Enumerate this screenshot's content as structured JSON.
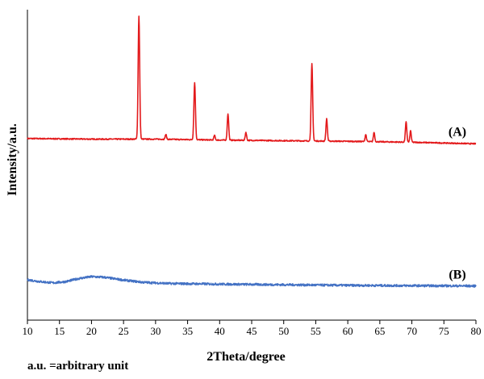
{
  "chart_data": {
    "type": "line",
    "xlabel": "2Theta/degree",
    "ylabel": "Intensity/a.u.",
    "xlim": [
      10,
      80
    ],
    "xticks": [
      10,
      15,
      20,
      25,
      30,
      35,
      40,
      45,
      50,
      55,
      60,
      65,
      70,
      75,
      80
    ],
    "ylim": [
      0,
      100
    ],
    "yticks_shown": false,
    "grid": false,
    "legend": "inline labels at right end of each trace",
    "footnote": "a.u. =arbitrary unit",
    "series": [
      {
        "name": "(A)",
        "color": "#e31a1c",
        "baseline": {
          "x": [
            10,
            20,
            30,
            40,
            50,
            60,
            70,
            80
          ],
          "y": [
            58.5,
            58.3,
            58.3,
            58.0,
            57.8,
            57.6,
            57.3,
            56.8
          ]
        },
        "peaks": [
          {
            "x": 27.4,
            "y": 98.0,
            "w": 0.17
          },
          {
            "x": 31.6,
            "y": 59.8,
            "w": 0.15
          },
          {
            "x": 36.1,
            "y": 76.5,
            "w": 0.17
          },
          {
            "x": 39.2,
            "y": 59.5,
            "w": 0.15
          },
          {
            "x": 41.3,
            "y": 66.5,
            "w": 0.16
          },
          {
            "x": 44.1,
            "y": 60.5,
            "w": 0.15
          },
          {
            "x": 54.4,
            "y": 82.5,
            "w": 0.17
          },
          {
            "x": 56.7,
            "y": 64.8,
            "w": 0.16
          },
          {
            "x": 62.8,
            "y": 59.8,
            "w": 0.15
          },
          {
            "x": 64.1,
            "y": 60.5,
            "w": 0.15
          },
          {
            "x": 69.1,
            "y": 63.8,
            "w": 0.16
          },
          {
            "x": 69.8,
            "y": 61.0,
            "w": 0.15
          }
        ]
      },
      {
        "name": "(B)",
        "color": "#4472c4",
        "baseline": {
          "x": [
            10,
            12,
            14,
            16,
            18,
            20,
            22,
            25,
            28,
            32,
            40,
            50,
            60,
            70,
            80
          ],
          "y": [
            13.0,
            12.4,
            12.0,
            12.4,
            13.4,
            14.0,
            13.8,
            12.9,
            12.2,
            11.8,
            11.6,
            11.4,
            11.2,
            11.1,
            11.0
          ]
        },
        "peaks": []
      }
    ]
  }
}
